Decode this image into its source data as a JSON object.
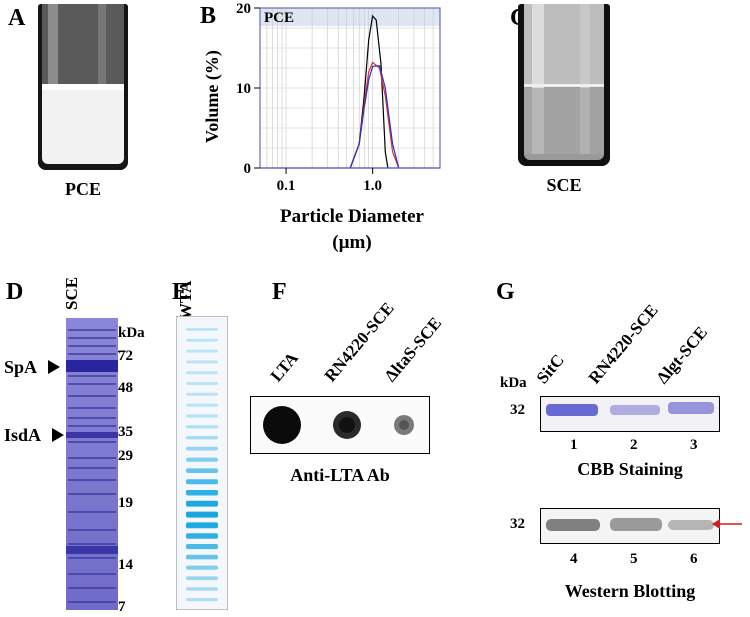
{
  "panels": {
    "A": {
      "letter": "A",
      "caption": "PCE"
    },
    "B": {
      "letter": "B"
    },
    "C": {
      "letter": "C",
      "caption": "SCE"
    },
    "D": {
      "letter": "D",
      "lane": "SCE",
      "unit": "kDa",
      "markers": [
        "72",
        "48",
        "35",
        "29",
        "19",
        "14",
        "7"
      ],
      "bands": [
        "SpA",
        "IsdA"
      ]
    },
    "E": {
      "letter": "E",
      "lane": "WTA"
    },
    "F": {
      "letter": "F",
      "lanes": [
        "LTA",
        "RN4220-SCE",
        "ΔltaS-SCE"
      ],
      "caption": "Anti-LTA Ab"
    },
    "G": {
      "letter": "G",
      "unit": "kDa",
      "lanes": [
        "SitC",
        "RN4220-SCE",
        "Δlgt-SCE"
      ],
      "marker": "32",
      "top_numbers": [
        "1",
        "2",
        "3"
      ],
      "top_caption": "CBB Staining",
      "bottom_numbers": [
        "4",
        "5",
        "6"
      ],
      "bottom_caption": "Western Blotting"
    }
  },
  "chart_data": {
    "type": "line",
    "title": "PCE",
    "xlabel": "Particle Diameter (µm)",
    "ylabel": "Volume (%)",
    "x_scale": "log",
    "xlim": [
      0.05,
      6
    ],
    "ylim": [
      0,
      20
    ],
    "xticks": [
      "0.1",
      "1.0"
    ],
    "yticks": [
      "0",
      "10",
      "20"
    ],
    "grid": true,
    "series": [
      {
        "color": "#000000",
        "x": [
          0.55,
          0.7,
          0.8,
          0.9,
          1.0,
          1.1,
          1.25,
          1.4,
          1.5
        ],
        "y": [
          0,
          3,
          9,
          16,
          19,
          18.5,
          13,
          2,
          0
        ]
      },
      {
        "color": "#e03030",
        "x": [
          0.55,
          0.7,
          0.8,
          0.9,
          1.0,
          1.2,
          1.4,
          1.7,
          2.0
        ],
        "y": [
          0,
          3,
          8,
          12,
          13.2,
          12.5,
          9,
          2,
          0
        ]
      },
      {
        "color": "#3030c0",
        "x": [
          0.55,
          0.7,
          0.8,
          0.9,
          1.0,
          1.2,
          1.4,
          1.7,
          2.0
        ],
        "y": [
          0,
          3,
          7.5,
          11,
          12.7,
          12.8,
          10,
          3,
          0
        ]
      }
    ]
  }
}
